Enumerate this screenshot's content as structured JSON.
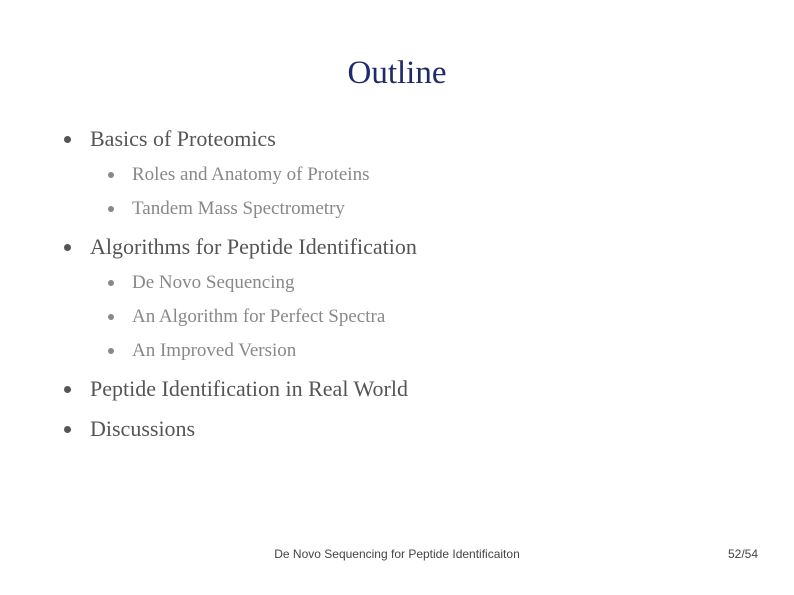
{
  "title": "Outline",
  "title_color": "#1f2a6b",
  "title_fontsize": 33,
  "body_color_l1": "#555555",
  "body_color_l2": "#888888",
  "body_fontsize_l1": 22,
  "body_fontsize_l2": 19,
  "background_color": "#ffffff",
  "items": [
    {
      "label": "Basics of Proteomics",
      "children": [
        {
          "label": "Roles and Anatomy of Proteins"
        },
        {
          "label": "Tandem Mass Spectrometry"
        }
      ]
    },
    {
      "label": "Algorithms for Peptide Identification",
      "children": [
        {
          "label": "De Novo Sequencing"
        },
        {
          "label": "An Algorithm for Perfect Spectra"
        },
        {
          "label": "An Improved Version"
        }
      ]
    },
    {
      "label": "Peptide Identification in Real World",
      "children": []
    },
    {
      "label": "Discussions",
      "children": []
    }
  ],
  "footer": {
    "center": "De Novo Sequencing for Peptide Identificaiton",
    "page": "52/54",
    "fontsize": 12,
    "color": "#444444"
  }
}
